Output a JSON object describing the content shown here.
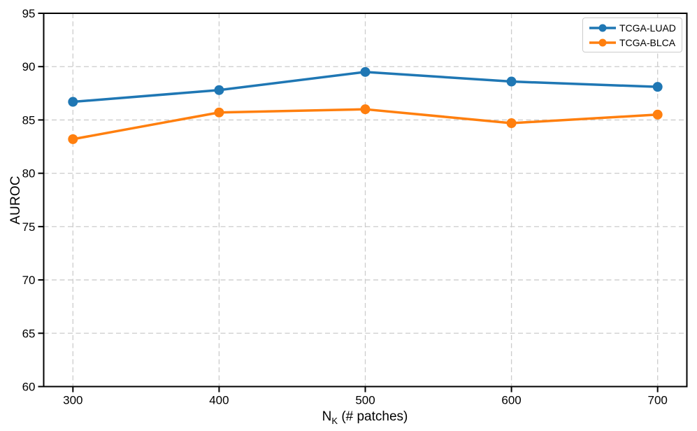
{
  "figure": {
    "ylabel": "AUROC",
    "xlabel_base": "N",
    "xlabel_sub": "K",
    "xlabel_rest": " (# patches)"
  },
  "chart_data": {
    "type": "line",
    "title": "",
    "xlabel": "N_K (# patches)",
    "ylabel": "AUROC",
    "x": [
      300,
      400,
      500,
      600,
      700
    ],
    "series": [
      {
        "name": "TCGA-LUAD",
        "color": "#1f77b4",
        "values": [
          86.7,
          87.8,
          89.5,
          88.6,
          88.1
        ]
      },
      {
        "name": "TCGA-BLCA",
        "color": "#ff7f0e",
        "values": [
          83.2,
          85.7,
          86.0,
          84.7,
          85.5
        ]
      }
    ],
    "xlim": [
      280,
      720
    ],
    "ylim": [
      60,
      95
    ],
    "xticks": [
      300,
      400,
      500,
      600,
      700
    ],
    "yticks": [
      60,
      65,
      70,
      75,
      80,
      85,
      90,
      95
    ],
    "grid": "dashed",
    "grid_color": "#cccccc",
    "spine_color": "#000000",
    "legend_position": "upper right",
    "marker": "circle"
  }
}
